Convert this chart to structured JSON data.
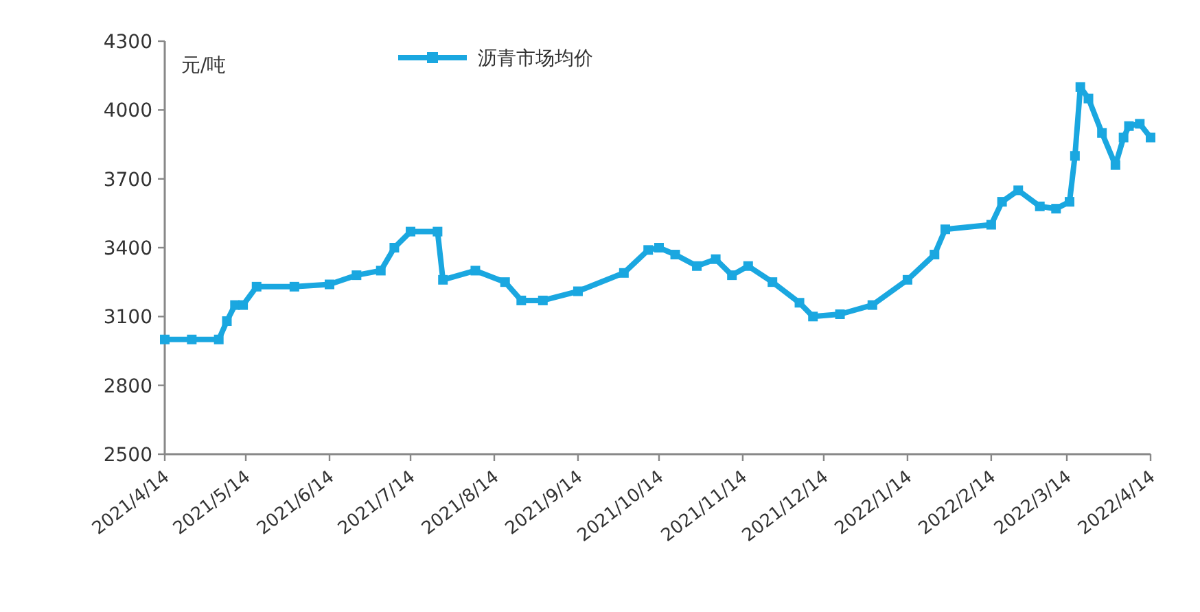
{
  "chart_data": {
    "type": "line",
    "ylabel": "元/吨",
    "legend": "top",
    "marker": "square",
    "grid": false,
    "x": [
      "2021-04-14",
      "2021-04-24",
      "2021-05-04",
      "2021-05-07",
      "2021-05-10",
      "2021-05-13",
      "2021-05-18",
      "2021-06-01",
      "2021-06-14",
      "2021-06-24",
      "2021-07-03",
      "2021-07-08",
      "2021-07-14",
      "2021-07-24",
      "2021-07-26",
      "2021-08-07",
      "2021-08-18",
      "2021-08-24",
      "2021-09-01",
      "2021-09-14",
      "2021-10-01",
      "2021-10-10",
      "2021-10-14",
      "2021-10-20",
      "2021-10-28",
      "2021-11-04",
      "2021-11-10",
      "2021-11-16",
      "2021-11-25",
      "2021-12-05",
      "2021-12-10",
      "2021-12-20",
      "2022-01-01",
      "2022-01-14",
      "2022-01-24",
      "2022-01-28",
      "2022-02-14",
      "2022-02-18",
      "2022-02-24",
      "2022-03-04",
      "2022-03-10",
      "2022-03-15",
      "2022-03-17",
      "2022-03-19",
      "2022-03-22",
      "2022-03-27",
      "2022-04-01",
      "2022-04-04",
      "2022-04-06",
      "2022-04-10",
      "2022-04-14"
    ],
    "series": [
      {
        "name": "沥青市场均价",
        "color": "#1aa7e0",
        "values": [
          3000,
          3000,
          3000,
          3080,
          3150,
          3150,
          3230,
          3230,
          3240,
          3280,
          3300,
          3400,
          3470,
          3470,
          3260,
          3300,
          3250,
          3170,
          3170,
          3210,
          3290,
          3390,
          3400,
          3370,
          3320,
          3350,
          3280,
          3320,
          3250,
          3160,
          3100,
          3110,
          3150,
          3260,
          3370,
          3480,
          3500,
          3600,
          3650,
          3580,
          3570,
          3600,
          3800,
          4100,
          4050,
          3900,
          3760,
          3880,
          3930,
          3940,
          3880
        ]
      }
    ],
    "xlim": [
      "2021-04-14",
      "2022-04-14"
    ],
    "xticks": [
      {
        "value": "2021-04-14",
        "label": "2021/4/14"
      },
      {
        "value": "2021-05-14",
        "label": "2021/5/14"
      },
      {
        "value": "2021-06-14",
        "label": "2021/6/14"
      },
      {
        "value": "2021-07-14",
        "label": "2021/7/14"
      },
      {
        "value": "2021-08-14",
        "label": "2021/8/14"
      },
      {
        "value": "2021-09-14",
        "label": "2021/9/14"
      },
      {
        "value": "2021-10-14",
        "label": "2021/10/14"
      },
      {
        "value": "2021-11-14",
        "label": "2021/11/14"
      },
      {
        "value": "2021-12-14",
        "label": "2021/12/14"
      },
      {
        "value": "2022-01-14",
        "label": "2022/1/14"
      },
      {
        "value": "2022-02-14",
        "label": "2022/2/14"
      },
      {
        "value": "2022-03-14",
        "label": "2022/3/14"
      },
      {
        "value": "2022-04-14",
        "label": "2022/4/14"
      }
    ],
    "ylim": [
      2500,
      4300
    ],
    "yticks": [
      2500,
      2800,
      3100,
      3400,
      3700,
      4000,
      4300
    ]
  }
}
